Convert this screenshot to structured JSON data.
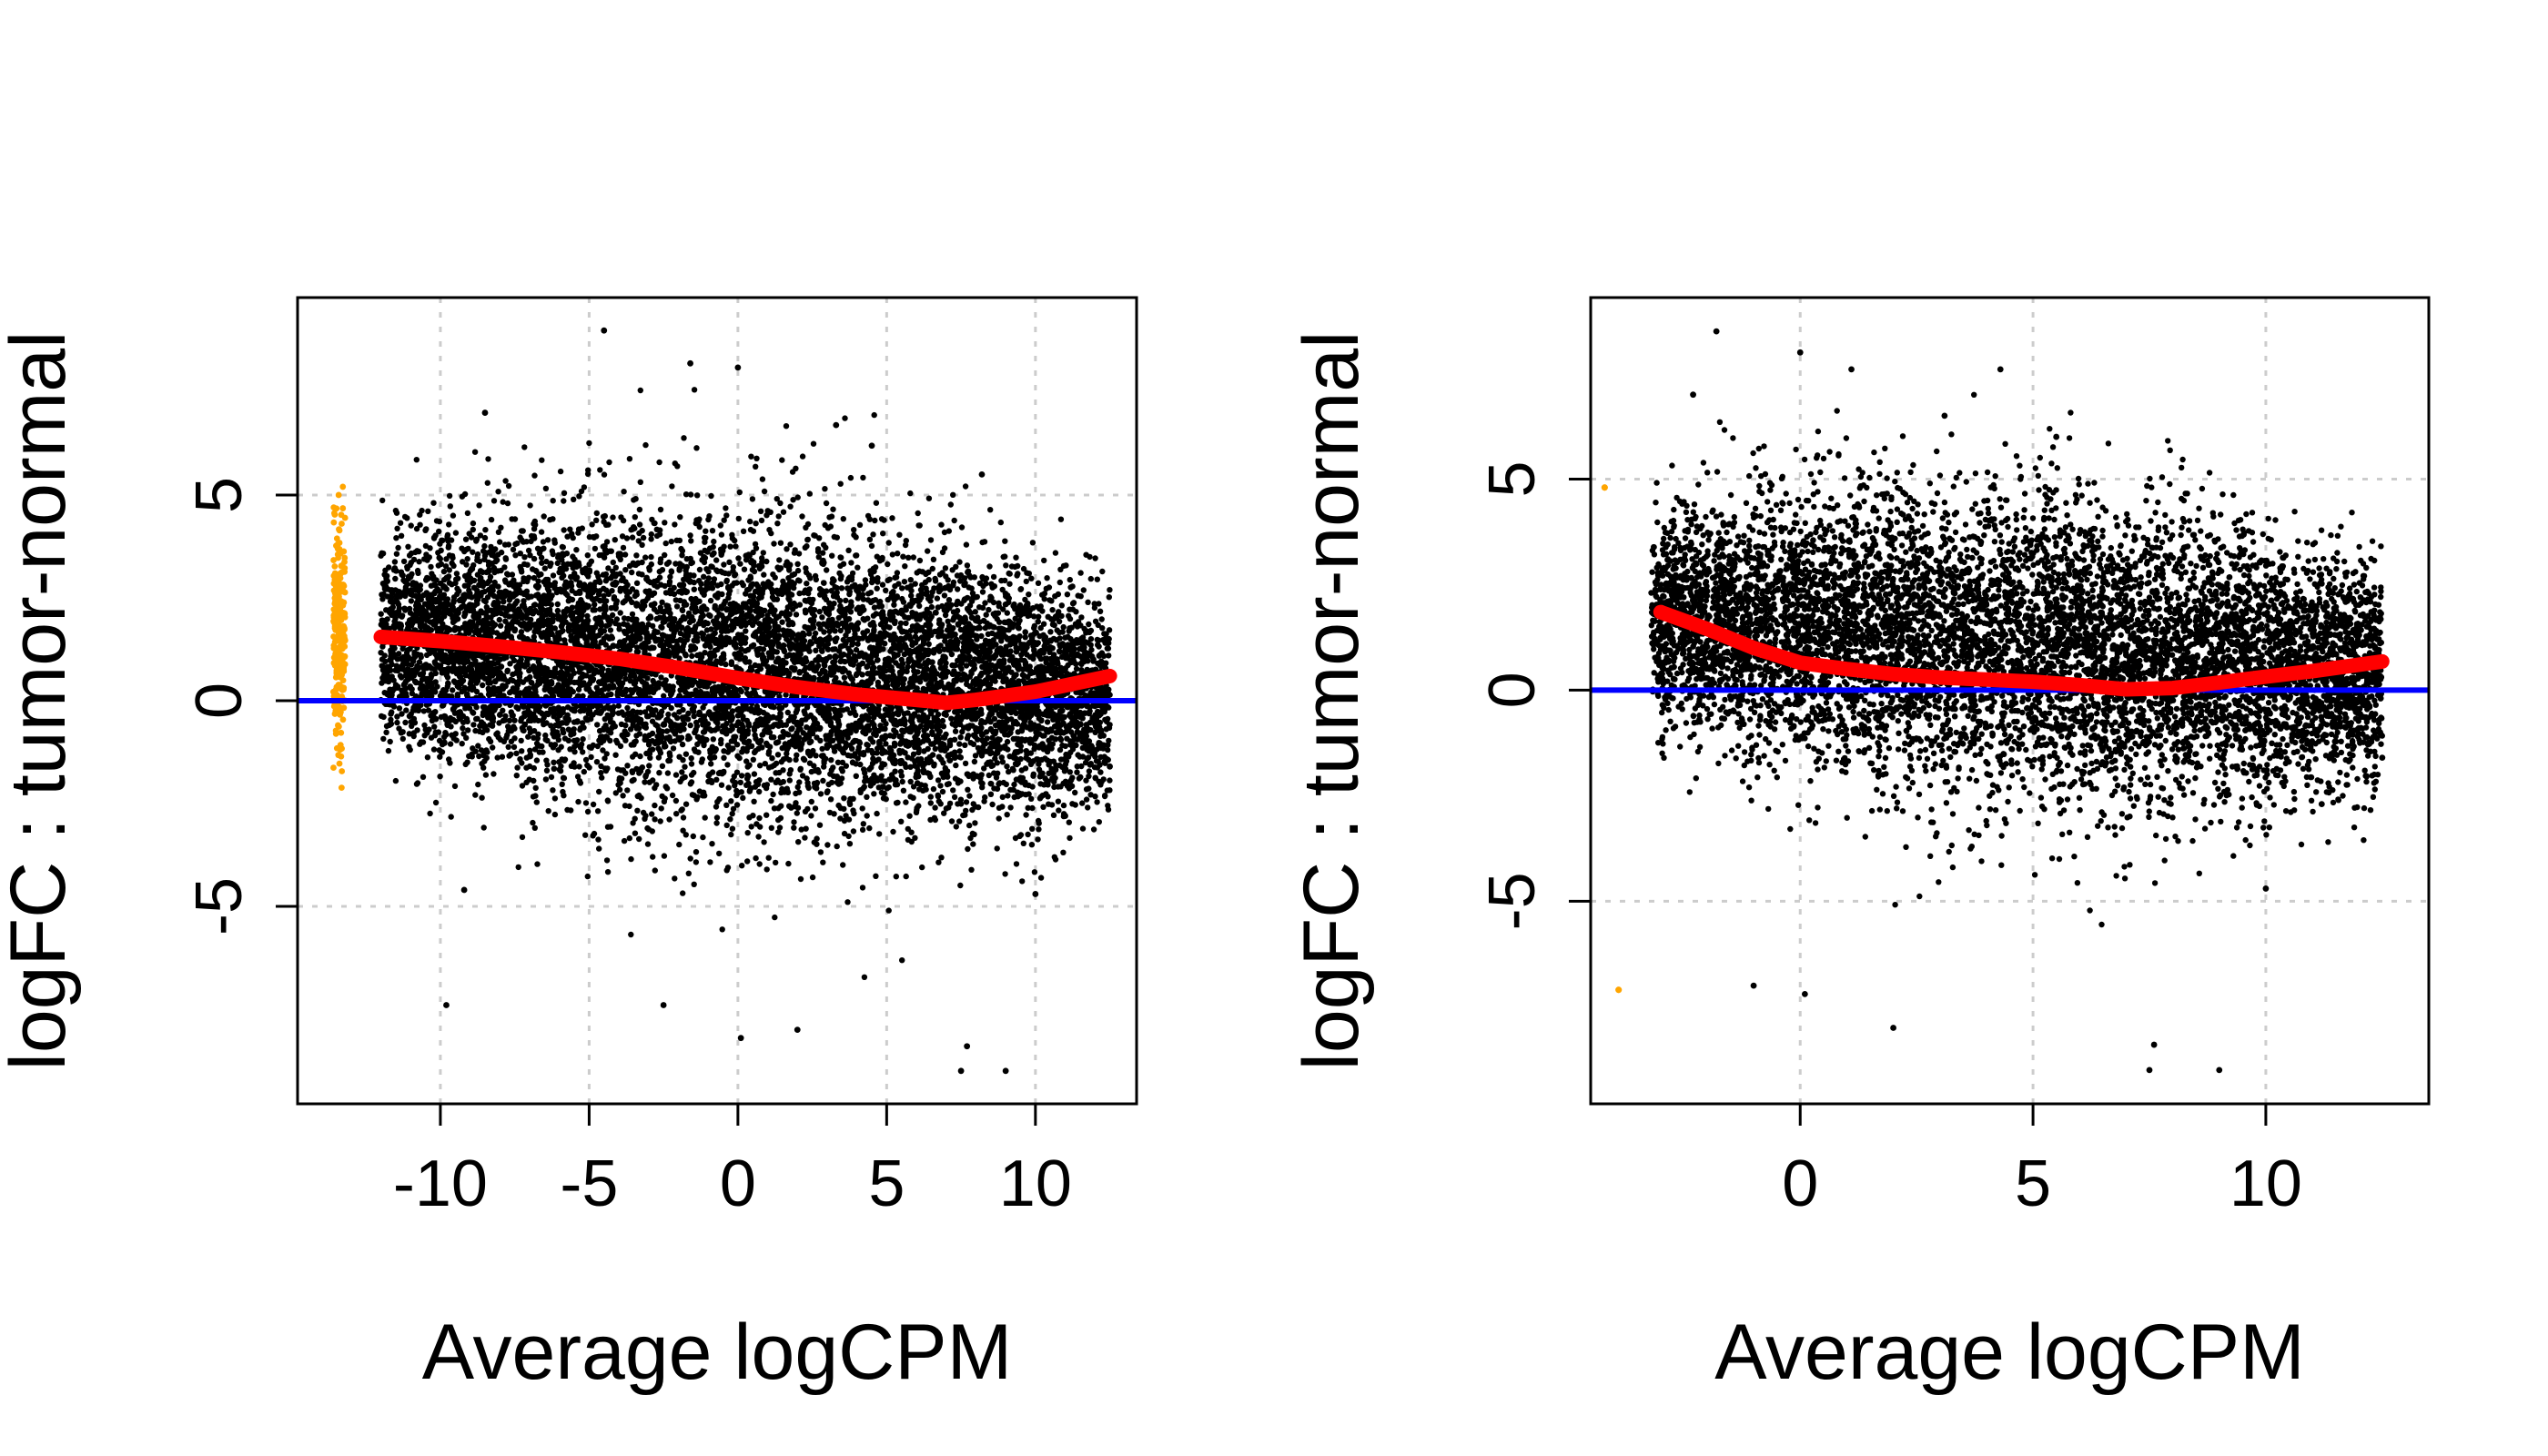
{
  "chart_data": [
    {
      "type": "scatter",
      "xlabel": "Average logCPM",
      "ylabel": "logFC : tumor-normal",
      "xlim": [
        -14.8,
        13.4
      ],
      "ylim": [
        -9.8,
        9.8
      ],
      "xticks": [
        -10,
        -5,
        0,
        5,
        10
      ],
      "yticks": [
        -5,
        0,
        5
      ],
      "grid": true,
      "colors": {
        "points": "#000000",
        "low_count_points": "#ffa500",
        "trend": "#ff0000",
        "baseline": "#0000ff",
        "grid": "#cccccc"
      },
      "reference_line_y": 0,
      "trend": {
        "x": [
          -12,
          -10,
          -8,
          -6,
          -4,
          -2,
          0,
          2,
          4,
          6,
          7,
          8,
          10,
          12.5
        ],
        "y": [
          1.55,
          1.45,
          1.32,
          1.18,
          1.02,
          0.8,
          0.55,
          0.33,
          0.15,
          0.02,
          -0.05,
          0.02,
          0.22,
          0.6
        ]
      },
      "low_count_points": {
        "x_range": [
          -13.6,
          -13.2
        ],
        "y_range": [
          -3.6,
          5.5
        ],
        "count": 260
      },
      "point_cloud": {
        "x_range": [
          -12,
          12.5
        ],
        "y_center": [
          1.5,
          0.0
        ],
        "count": 9000,
        "outliers": [
          {
            "x": -4.5,
            "y": 9.0
          },
          {
            "x": -1.6,
            "y": 8.2
          },
          {
            "x": 0.0,
            "y": 8.1
          },
          {
            "x": -8.5,
            "y": 7.0
          },
          {
            "x": 3.3,
            "y": 6.7
          },
          {
            "x": 4.5,
            "y": 6.2
          },
          {
            "x": 8.2,
            "y": 5.5
          },
          {
            "x": -9.2,
            "y": -4.6
          },
          {
            "x": -9.8,
            "y": -7.4
          },
          {
            "x": -2.5,
            "y": -7.4
          },
          {
            "x": 0.1,
            "y": -8.2
          },
          {
            "x": 2.0,
            "y": -8.0
          },
          {
            "x": 7.7,
            "y": -8.4
          },
          {
            "x": 7.5,
            "y": -9.0
          },
          {
            "x": 9.0,
            "y": -9.0
          },
          {
            "x": 10.0,
            "y": -4.7
          },
          {
            "x": 12.5,
            "y": -1.6
          },
          {
            "x": 11.0,
            "y": -2.8
          }
        ]
      }
    },
    {
      "type": "scatter",
      "xlabel": "Average logCPM",
      "ylabel": "logFC : tumor-normal",
      "xlim": [
        -4.5,
        13.5
      ],
      "ylim": [
        -9.8,
        9.3
      ],
      "xticks": [
        0,
        5,
        10
      ],
      "yticks": [
        -5,
        0,
        5
      ],
      "grid": true,
      "colors": {
        "points": "#000000",
        "low_count_points": "#ffa500",
        "trend": "#ff0000",
        "baseline": "#0000ff",
        "grid": "#cccccc"
      },
      "reference_line_y": 0,
      "trend": {
        "x": [
          -3,
          -2,
          -1,
          0,
          1,
          2,
          3,
          4,
          5,
          6,
          7,
          8,
          9,
          10,
          11,
          12.5
        ],
        "y": [
          1.85,
          1.45,
          1.0,
          0.65,
          0.5,
          0.38,
          0.3,
          0.25,
          0.2,
          0.12,
          0.02,
          0.05,
          0.18,
          0.32,
          0.45,
          0.68
        ]
      },
      "low_count_points": {
        "points": [
          {
            "x": -4.2,
            "y": 4.8
          },
          {
            "x": -3.9,
            "y": -7.1
          }
        ]
      },
      "point_cloud": {
        "x_range": [
          -3.2,
          12.5
        ],
        "y_center": [
          1.8,
          0.3
        ],
        "count": 8000,
        "outliers": [
          {
            "x": -1.8,
            "y": 8.5
          },
          {
            "x": 0.0,
            "y": 8.0
          },
          {
            "x": 1.1,
            "y": 7.6
          },
          {
            "x": 4.3,
            "y": 7.6
          },
          {
            "x": -2.3,
            "y": 7.0
          },
          {
            "x": 3.1,
            "y": 6.5
          },
          {
            "x": 5.5,
            "y": 6.0
          },
          {
            "x": -1.0,
            "y": -7.0
          },
          {
            "x": 0.1,
            "y": -7.2
          },
          {
            "x": 2.0,
            "y": -8.0
          },
          {
            "x": 7.6,
            "y": -8.4
          },
          {
            "x": 9.0,
            "y": -9.0
          },
          {
            "x": 7.5,
            "y": -9.0
          },
          {
            "x": 10.0,
            "y": -4.7
          },
          {
            "x": 12.5,
            "y": -1.6
          },
          {
            "x": 11.2,
            "y": -2.7
          }
        ]
      }
    }
  ]
}
